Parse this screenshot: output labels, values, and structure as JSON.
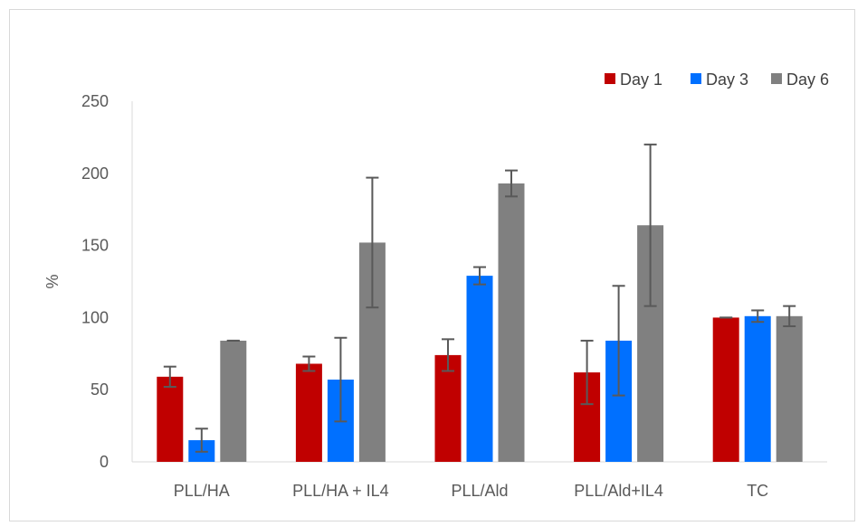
{
  "chart_data": {
    "type": "bar",
    "title": "",
    "xlabel": "",
    "ylabel": "%",
    "ylim": [
      0,
      250
    ],
    "yticks": [
      0,
      50,
      100,
      150,
      200,
      250
    ],
    "grid": false,
    "legend_position": "top-right",
    "categories": [
      "PLL/HA",
      "PLL/HA + IL4",
      "PLL/Ald",
      "PLL/Ald+IL4",
      "TC"
    ],
    "series": [
      {
        "name": "Day 1",
        "color": "#c00000",
        "values": [
          59,
          68,
          74,
          62,
          100
        ],
        "errors": [
          7,
          5,
          11,
          22,
          0
        ]
      },
      {
        "name": "Day 3",
        "color": "#0070ff",
        "values": [
          15,
          57,
          129,
          84,
          101
        ],
        "errors": [
          8,
          29,
          6,
          38,
          4
        ]
      },
      {
        "name": "Day 6",
        "color": "#808080",
        "values": [
          84,
          152,
          193,
          164,
          101
        ],
        "errors": [
          0,
          45,
          9,
          56,
          7
        ]
      }
    ]
  }
}
